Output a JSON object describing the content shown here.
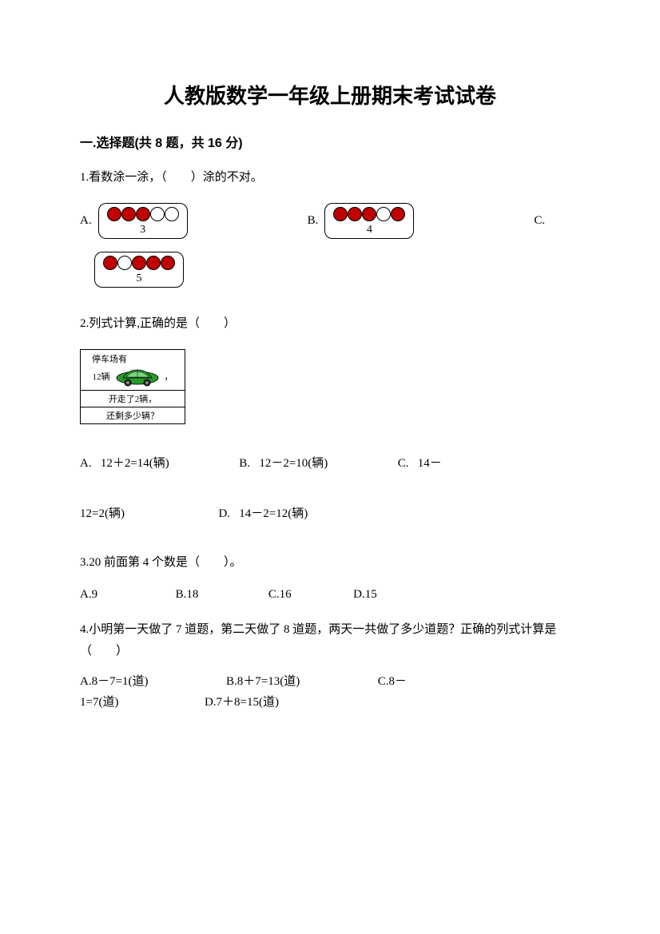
{
  "title": "人教版数学一年级上册期末考试试卷",
  "section1": {
    "header": "一.选择题(共 8 题，共 16 分)"
  },
  "q1": {
    "text": "1.看数涂一涂，（　　）涂的不对。",
    "optionA": {
      "label": "A.",
      "number": "3",
      "circles": [
        true,
        true,
        true,
        false,
        false
      ]
    },
    "optionB": {
      "label": "B.",
      "number": "4",
      "circles": [
        true,
        true,
        true,
        false,
        true
      ]
    },
    "optionC": {
      "label": "C.",
      "number": "5",
      "circles": [
        true,
        false,
        true,
        true,
        true
      ]
    }
  },
  "q2": {
    "text": "2.列式计算,正确的是（　　）",
    "parking": {
      "line1": "停车场有",
      "count": "12辆",
      "line3": "开走了2辆，",
      "line4": "还剩多少辆？"
    },
    "optA_label": "A.",
    "optA_text": "12＋2=14(辆)",
    "optB_label": "B.",
    "optB_text": "12－2=10(辆)",
    "optC_label": "C.",
    "optC_text": "14－",
    "line2_a": "12=2(辆)",
    "optD_label": "D.",
    "optD_text": "14－2=12(辆)"
  },
  "q3": {
    "text": "3.20 前面第 4 个数是（　　）。",
    "optA": "A.9",
    "optB": "B.18",
    "optC": "C.16",
    "optD": "D.15"
  },
  "q4": {
    "text": "4.小明第一天做了 7 道题，第二天做了 8 道题，两天一共做了多少道题？正确的列式计算是（　　）",
    "optA": "A.8－7=1(道)",
    "optB": "B.8＋7=13(道)",
    "optC": "C.8－",
    "line2_a": "1=7(道)",
    "optD": "D.7＋8=15(道)"
  },
  "colors": {
    "circle_fill": "#c00000",
    "car_body": "#2a9a2a",
    "car_shade": "#1a6b1a",
    "text": "#000000",
    "bg": "#ffffff"
  }
}
